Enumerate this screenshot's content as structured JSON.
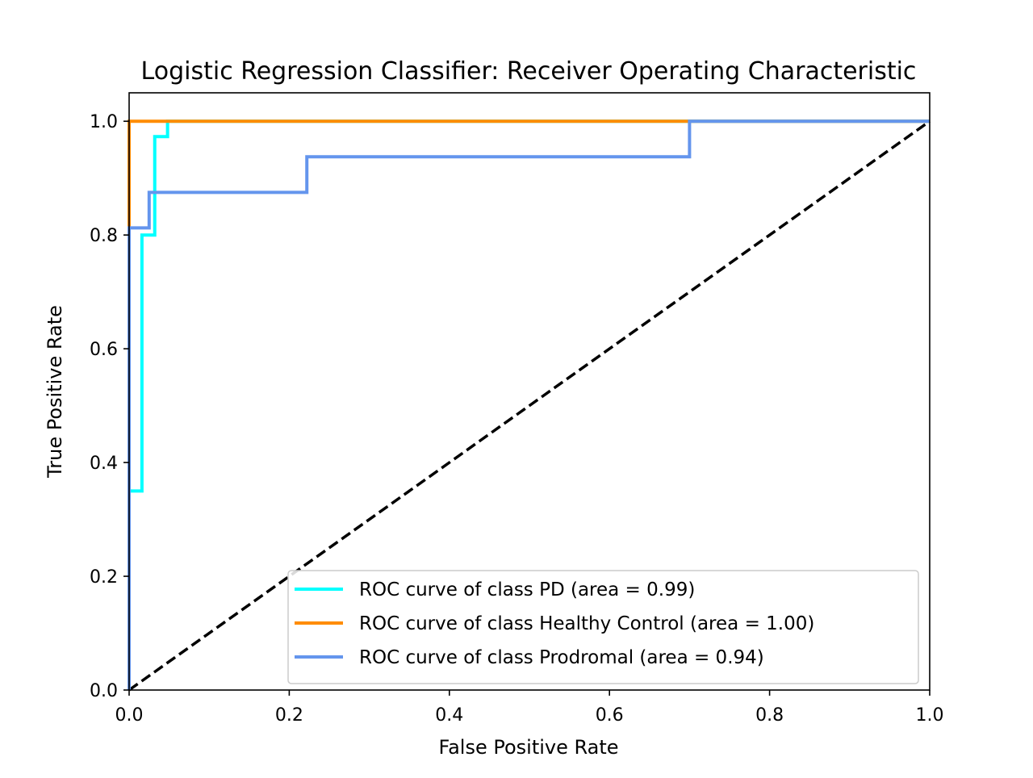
{
  "chart_data": {
    "type": "line",
    "title": "Logistic Regression Classifier: Receiver Operating Characteristic",
    "xlabel": "False Positive Rate",
    "ylabel": "True Positive Rate",
    "xlim": [
      0.0,
      1.0
    ],
    "ylim": [
      0.0,
      1.05
    ],
    "xticks": [
      "0.0",
      "0.2",
      "0.4",
      "0.6",
      "0.8",
      "1.0"
    ],
    "yticks": [
      "0.0",
      "0.2",
      "0.4",
      "0.6",
      "0.8",
      "1.0"
    ],
    "grid": false,
    "legend_position": "lower-right",
    "series": [
      {
        "name": "ROC curve of class PD (area = 0.99)",
        "color": "#00ffff",
        "x": [
          0.0,
          0.0,
          0.016,
          0.016,
          0.032,
          0.032,
          0.048,
          0.048,
          1.0
        ],
        "y": [
          0.0,
          0.35,
          0.35,
          0.8,
          0.8,
          0.973,
          0.973,
          1.0,
          1.0
        ]
      },
      {
        "name": "ROC curve of class Healthy Control (area = 1.00)",
        "color": "#ff8c00",
        "x": [
          0.0,
          0.0,
          1.0
        ],
        "y": [
          0.0,
          1.0,
          1.0
        ]
      },
      {
        "name": "ROC curve of class Prodromal (area = 0.94)",
        "color": "#6495ed",
        "x": [
          0.0,
          0.0,
          0.025,
          0.025,
          0.222,
          0.222,
          0.7,
          0.7,
          1.0
        ],
        "y": [
          0.0,
          0.8125,
          0.8125,
          0.875,
          0.875,
          0.9375,
          0.9375,
          1.0,
          1.0
        ]
      }
    ],
    "reference_line": {
      "color": "#000000",
      "style": "dashed",
      "x": [
        0.0,
        1.0
      ],
      "y": [
        0.0,
        1.0
      ]
    }
  }
}
